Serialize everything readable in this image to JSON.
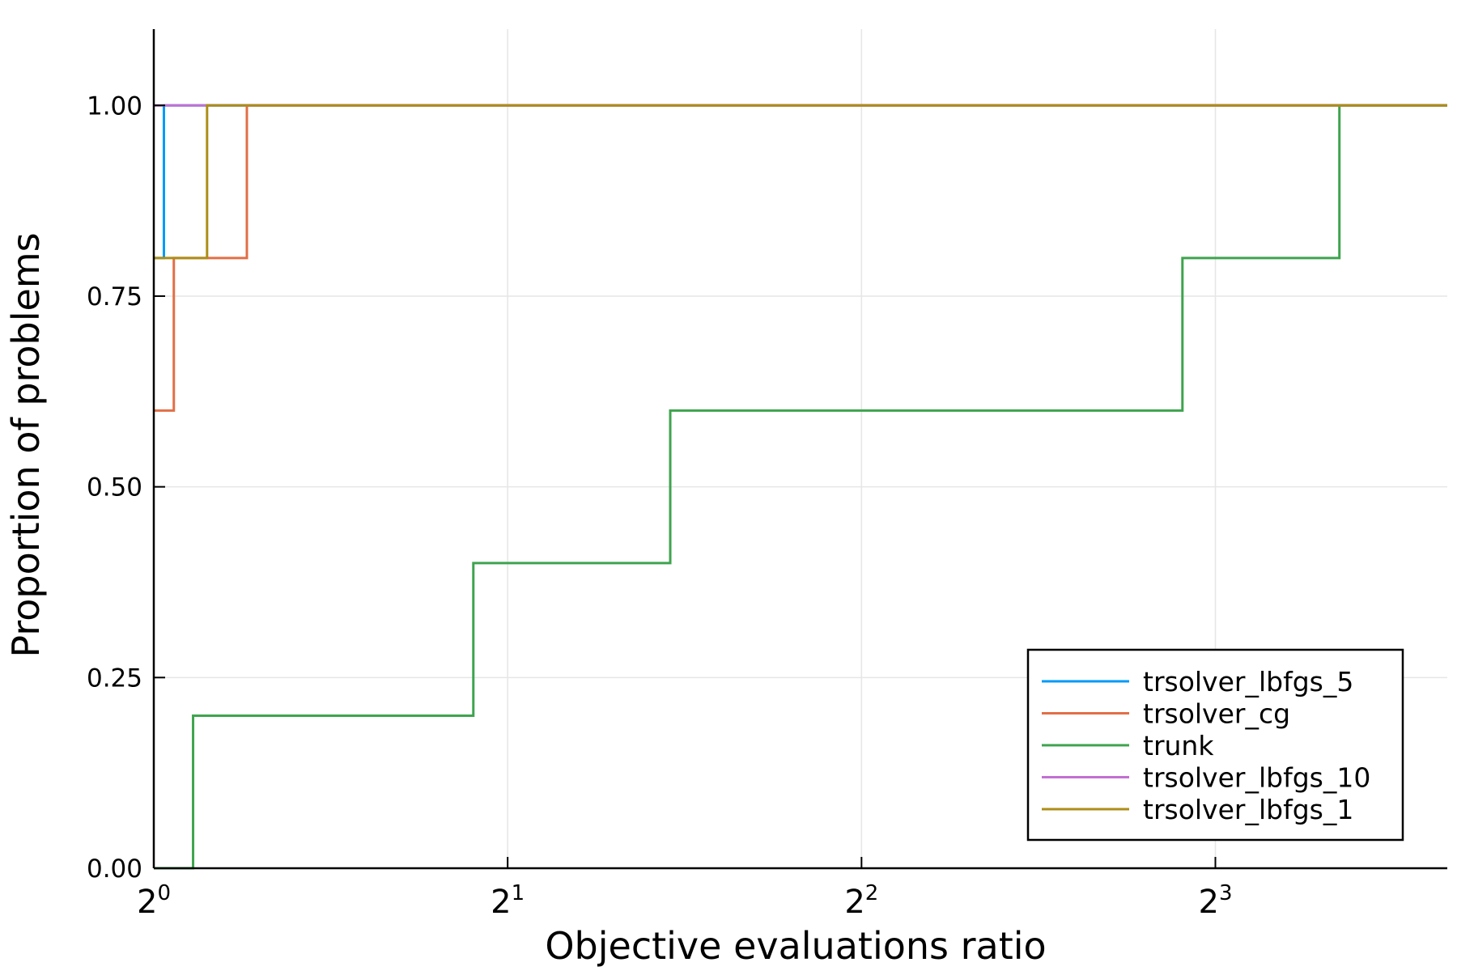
{
  "chart_data": {
    "type": "line",
    "step": "post",
    "xscale": "log2",
    "xlabel": "Objective evaluations ratio",
    "ylabel": "Proportion of problems",
    "xlim": [
      1,
      12.6
    ],
    "ylim": [
      0,
      1.1
    ],
    "grid": true,
    "legend_position": "bottom-right",
    "xticks": [
      {
        "value": 1,
        "base": "2",
        "exp": "0"
      },
      {
        "value": 2,
        "base": "2",
        "exp": "1"
      },
      {
        "value": 4,
        "base": "2",
        "exp": "2"
      },
      {
        "value": 8,
        "base": "2",
        "exp": "3"
      }
    ],
    "yticks": [
      {
        "value": 0,
        "label": "0.00"
      },
      {
        "value": 0.25,
        "label": "0.25"
      },
      {
        "value": 0.5,
        "label": "0.50"
      },
      {
        "value": 0.75,
        "label": "0.75"
      },
      {
        "value": 1,
        "label": "1.00"
      }
    ],
    "series": [
      {
        "name": "trsolver_lbfgs_5",
        "color": "#009af9",
        "x": [
          1,
          1.02,
          12.6
        ],
        "y": [
          0.8,
          1.0,
          1.0
        ]
      },
      {
        "name": "trsolver_cg",
        "color": "#e26f46",
        "x": [
          1,
          1.04,
          1.2,
          12.6
        ],
        "y": [
          0.6,
          0.8,
          1.0,
          1.0
        ]
      },
      {
        "name": "trunk",
        "color": "#3ea44e",
        "x": [
          1,
          1.08,
          1.87,
          2.75,
          7.5,
          10.2,
          12.6
        ],
        "y": [
          0.0,
          0.2,
          0.4,
          0.6,
          0.8,
          1.0,
          1.0
        ]
      },
      {
        "name": "trsolver_lbfgs_10",
        "color": "#c271d2",
        "x": [
          1,
          12.6
        ],
        "y": [
          1.0,
          1.0
        ]
      },
      {
        "name": "trsolver_lbfgs_1",
        "color": "#ac8e18",
        "x": [
          1,
          1.11,
          12.6
        ],
        "y": [
          0.8,
          1.0,
          1.0
        ]
      }
    ]
  }
}
